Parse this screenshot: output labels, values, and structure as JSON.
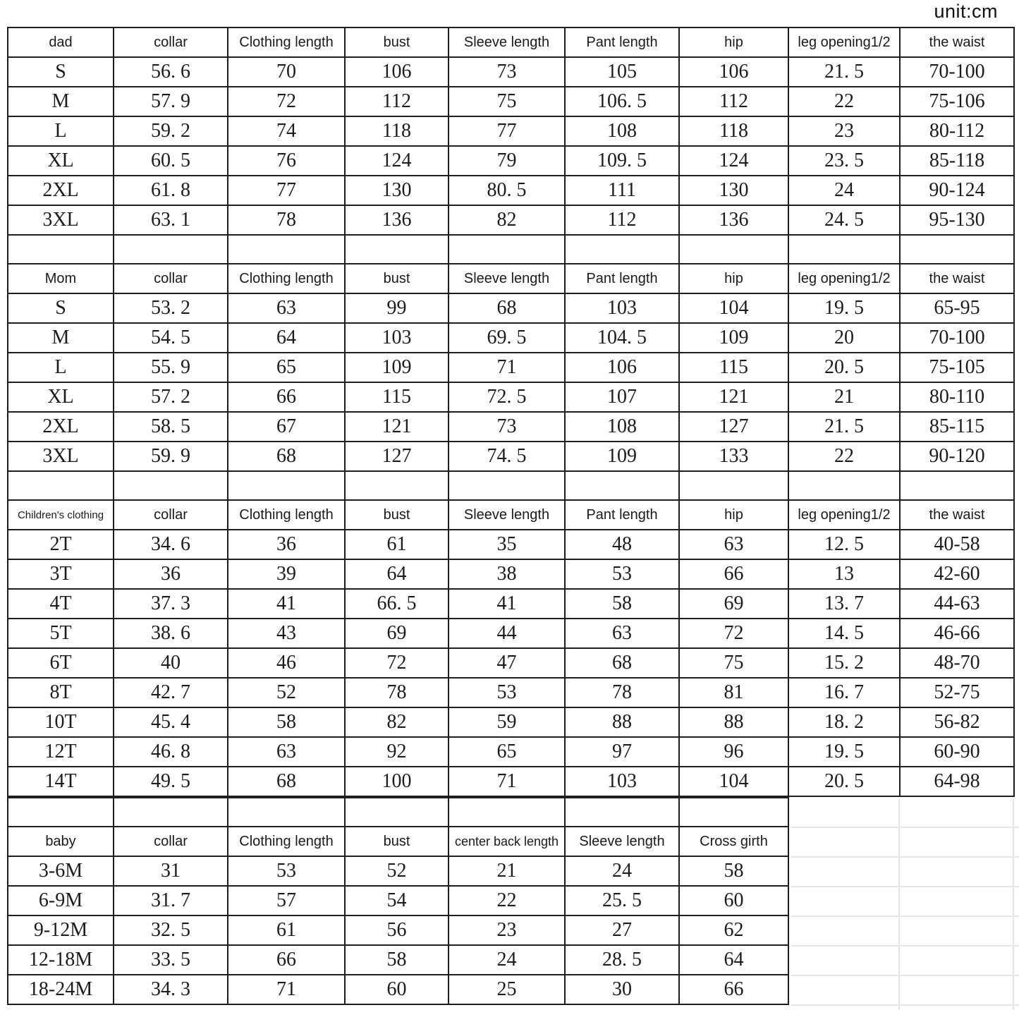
{
  "unit_label": "unit:cm",
  "sections": {
    "dad": {
      "headers": [
        "dad",
        "collar",
        "Clothing length",
        "bust",
        "Sleeve length",
        "Pant length",
        "hip",
        "leg opening1/2",
        "the waist"
      ],
      "rows": [
        [
          "S",
          "56. 6",
          "70",
          "106",
          "73",
          "105",
          "106",
          "21. 5",
          "70-100"
        ],
        [
          "M",
          "57. 9",
          "72",
          "112",
          "75",
          "106. 5",
          "112",
          "22",
          "75-106"
        ],
        [
          "L",
          "59. 2",
          "74",
          "118",
          "77",
          "108",
          "118",
          "23",
          "80-112"
        ],
        [
          "XL",
          "60. 5",
          "76",
          "124",
          "79",
          "109. 5",
          "124",
          "23. 5",
          "85-118"
        ],
        [
          "2XL",
          "61. 8",
          "77",
          "130",
          "80. 5",
          "111",
          "130",
          "24",
          "90-124"
        ],
        [
          "3XL",
          "63. 1",
          "78",
          "136",
          "82",
          "112",
          "136",
          "24. 5",
          "95-130"
        ]
      ]
    },
    "mom": {
      "headers": [
        "Mom",
        "collar",
        "Clothing length",
        "bust",
        "Sleeve length",
        "Pant length",
        "hip",
        "leg opening1/2",
        "the waist"
      ],
      "rows": [
        [
          "S",
          "53. 2",
          "63",
          "99",
          "68",
          "103",
          "104",
          "19. 5",
          "65-95"
        ],
        [
          "M",
          "54. 5",
          "64",
          "103",
          "69. 5",
          "104. 5",
          "109",
          "20",
          "70-100"
        ],
        [
          "L",
          "55. 9",
          "65",
          "109",
          "71",
          "106",
          "115",
          "20. 5",
          "75-105"
        ],
        [
          "XL",
          "57. 2",
          "66",
          "115",
          "72. 5",
          "107",
          "121",
          "21",
          "80-110"
        ],
        [
          "2XL",
          "58. 5",
          "67",
          "121",
          "73",
          "108",
          "127",
          "21. 5",
          "85-115"
        ],
        [
          "3XL",
          "59. 9",
          "68",
          "127",
          "74. 5",
          "109",
          "133",
          "22",
          "90-120"
        ]
      ]
    },
    "children": {
      "headers": [
        "Children's clothing",
        "collar",
        "Clothing length",
        "bust",
        "Sleeve length",
        "Pant length",
        "hip",
        "leg opening1/2",
        "the waist"
      ],
      "rows": [
        [
          "2T",
          "34. 6",
          "36",
          "61",
          "35",
          "48",
          "63",
          "12. 5",
          "40-58"
        ],
        [
          "3T",
          "36",
          "39",
          "64",
          "38",
          "53",
          "66",
          "13",
          "42-60"
        ],
        [
          "4T",
          "37. 3",
          "41",
          "66. 5",
          "41",
          "58",
          "69",
          "13. 7",
          "44-63"
        ],
        [
          "5T",
          "38. 6",
          "43",
          "69",
          "44",
          "63",
          "72",
          "14. 5",
          "46-66"
        ],
        [
          "6T",
          "40",
          "46",
          "72",
          "47",
          "68",
          "75",
          "15. 2",
          "48-70"
        ],
        [
          "8T",
          "42. 7",
          "52",
          "78",
          "53",
          "78",
          "81",
          "16. 7",
          "52-75"
        ],
        [
          "10T",
          "45. 4",
          "58",
          "82",
          "59",
          "88",
          "88",
          "18. 2",
          "56-82"
        ],
        [
          "12T",
          "46. 8",
          "63",
          "92",
          "65",
          "97",
          "96",
          "19. 5",
          "60-90"
        ],
        [
          "14T",
          "49. 5",
          "68",
          "100",
          "71",
          "103",
          "104",
          "20. 5",
          "64-98"
        ]
      ]
    },
    "baby": {
      "headers": [
        "baby",
        "collar",
        "Clothing length",
        "bust",
        "center back length",
        "Sleeve length",
        "Cross girth"
      ],
      "rows": [
        [
          "3-6M",
          "31",
          "53",
          "52",
          "21",
          "24",
          "58"
        ],
        [
          "6-9M",
          "31. 7",
          "57",
          "54",
          "22",
          "25. 5",
          "60"
        ],
        [
          "9-12M",
          "32. 5",
          "61",
          "56",
          "23",
          "27",
          "62"
        ],
        [
          "12-18M",
          "33. 5",
          "66",
          "58",
          "24",
          "28. 5",
          "64"
        ],
        [
          "18-24M",
          "34. 3",
          "71",
          "60",
          "25",
          "30",
          "66"
        ]
      ]
    }
  }
}
